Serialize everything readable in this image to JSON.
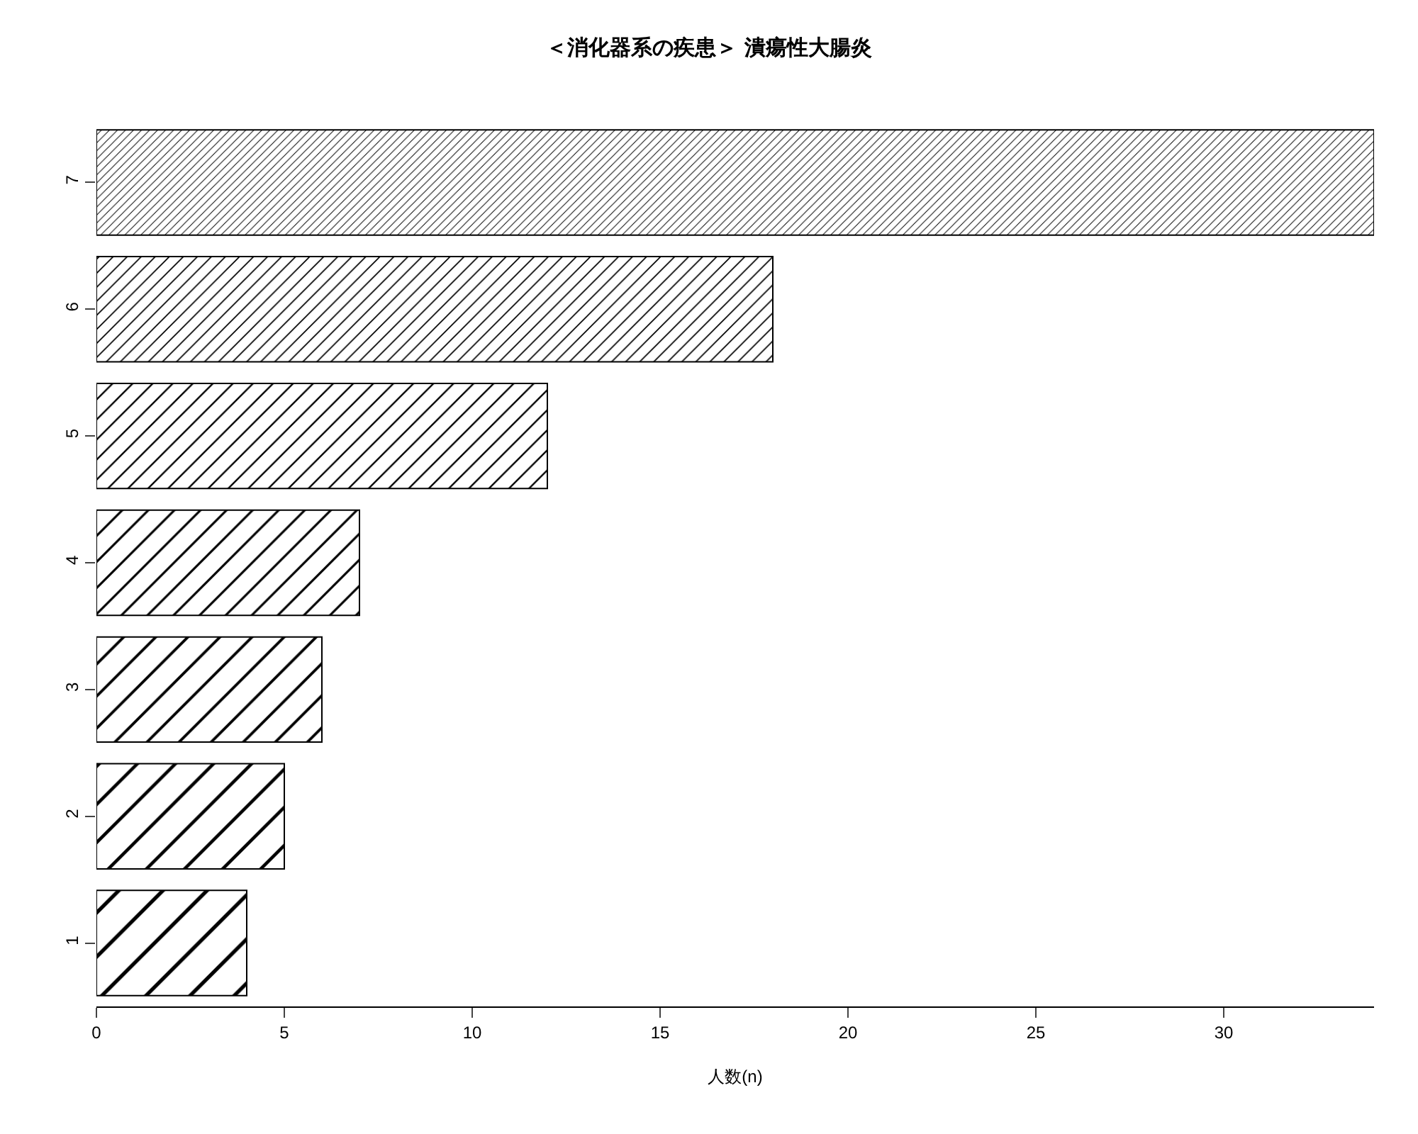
{
  "chart_data": {
    "type": "bar",
    "orientation": "horizontal",
    "title": "＜消化器系の疾患＞ 潰瘍性大腸炎",
    "xlabel": "人数(n)",
    "categories": [
      "7",
      "6",
      "5",
      "4",
      "3",
      "2",
      "1"
    ],
    "values": [
      34,
      18,
      12,
      7,
      6,
      5,
      4
    ],
    "color": "#000000",
    "xlim": [
      0,
      34
    ],
    "xticks": [
      0,
      5,
      10,
      15,
      20,
      25,
      30
    ],
    "grid": false
  }
}
